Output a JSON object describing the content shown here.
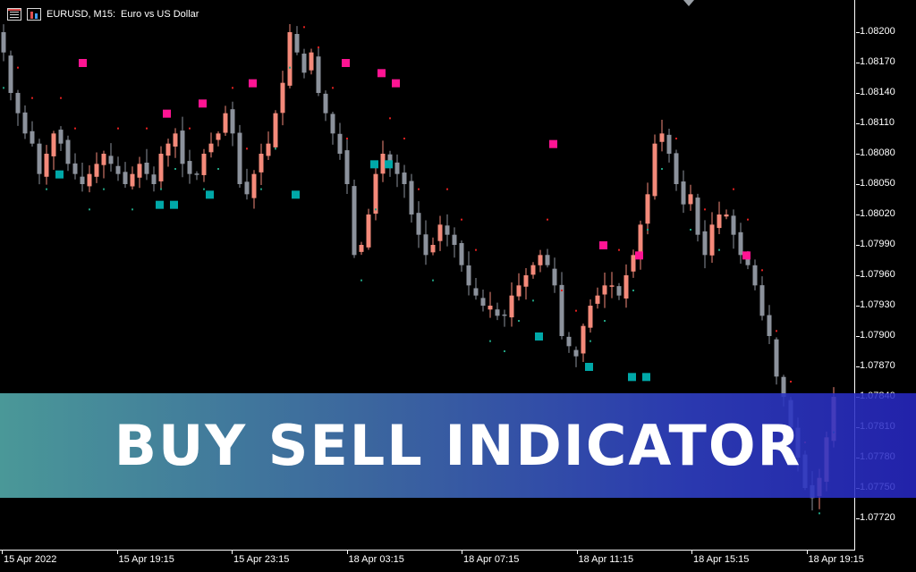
{
  "header": {
    "symbol_timeframe": "EURUSD, M15:",
    "description": "Euro vs US Dollar",
    "icons": [
      "chart-sheet-icon",
      "chart-bars-icon"
    ]
  },
  "price_axis": {
    "labels": [
      "1.08200",
      "1.08170",
      "1.08140",
      "1.08110",
      "1.08080",
      "1.08050",
      "1.08020",
      "1.07990",
      "1.07960",
      "1.07930",
      "1.07900",
      "1.07870",
      "1.07840",
      "1.07810",
      "1.07780",
      "1.07750",
      "1.07720"
    ]
  },
  "time_axis": {
    "labels": [
      "15 Apr 2022",
      "15 Apr 19:15",
      "15 Apr 23:15",
      "18 Apr 03:15",
      "18 Apr 07:15",
      "18 Apr 11:15",
      "18 Apr 15:15",
      "18 Apr 19:15"
    ]
  },
  "banner": {
    "title": "BUY SELL INDICATOR"
  },
  "colors": {
    "bull_candle": "#f48a7a",
    "bear_candle": "#8c929c",
    "sell_signal": "#ff1493",
    "buy_signal": "#00a8a8",
    "sell_trail": "#e02020",
    "buy_trail": "#20a080",
    "background": "#000000"
  },
  "chart_data": {
    "type": "candlestick",
    "symbol": "EURUSD",
    "timeframe": "M15",
    "y_range": [
      1.077,
      1.08225
    ],
    "close_path": [
      1.0818,
      1.0814,
      1.0812,
      1.081,
      1.0809,
      1.0806,
      1.0808,
      1.081,
      1.0809,
      1.0807,
      1.0806,
      1.0805,
      1.0806,
      1.0807,
      1.0808,
      1.0807,
      1.0806,
      1.0805,
      1.0806,
      1.0807,
      1.0806,
      1.0805,
      1.0808,
      1.0809,
      1.081,
      1.0807,
      1.0806,
      1.0806,
      1.0808,
      1.0809,
      1.081,
      1.0812,
      1.081,
      1.0805,
      1.0804,
      1.0806,
      1.0808,
      1.0809,
      1.0812,
      1.0815,
      1.082,
      1.0818,
      1.0816,
      1.0818,
      1.0814,
      1.0812,
      1.081,
      1.0808,
      1.0805,
      1.0798,
      1.0799,
      1.0802,
      1.0806,
      1.0808,
      1.0807,
      1.0806,
      1.0805,
      1.0802,
      1.08,
      1.0798,
      1.0799,
      1.0801,
      1.08,
      1.0799,
      1.0797,
      1.0795,
      1.0794,
      1.0793,
      1.0793,
      1.0792,
      1.0792,
      1.0794,
      1.0795,
      1.0796,
      1.0797,
      1.0798,
      1.0797,
      1.0795,
      1.079,
      1.0789,
      1.0788,
      1.0791,
      1.0793,
      1.0794,
      1.0795,
      1.0795,
      1.0794,
      1.0796,
      1.0798,
      1.0801,
      1.0804,
      1.0809,
      1.081,
      1.0808,
      1.0805,
      1.0803,
      1.0804,
      1.08,
      1.0798,
      1.0801,
      1.0802,
      1.0802,
      1.08,
      1.0798,
      1.0797,
      1.0795,
      1.0792,
      1.079,
      1.0786,
      1.0784,
      1.0781,
      1.0778,
      1.0775,
      1.0774,
      1.0776,
      1.078,
      1.0784
    ],
    "sell_signals_price": [
      1.0817,
      1.0812,
      1.0813,
      1.0815,
      1.0817,
      1.0816,
      1.0815,
      1.0809,
      1.0799,
      1.0798,
      1.0798
    ],
    "buy_signals_price": [
      1.0806,
      1.0803,
      1.0803,
      1.0804,
      1.0804,
      1.0807,
      1.0807,
      1.079,
      1.0787,
      1.0786,
      1.0786
    ]
  }
}
